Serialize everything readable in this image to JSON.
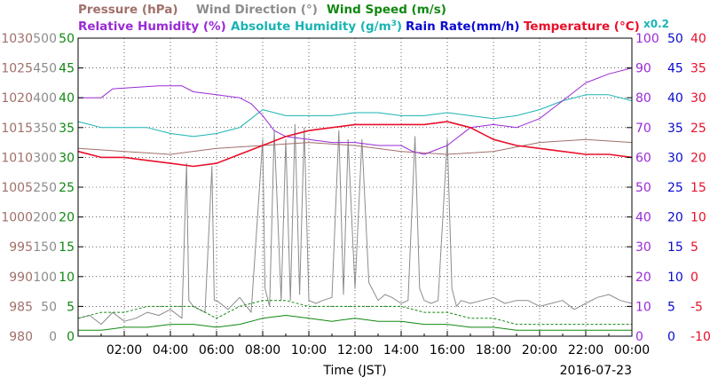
{
  "chart_data": {
    "type": "line",
    "xlabel": "Time (JST)",
    "date": "2016-07-23",
    "x_ticks": [
      "02:00",
      "04:00",
      "06:00",
      "08:00",
      "10:00",
      "12:00",
      "14:00",
      "16:00",
      "18:00",
      "20:00",
      "22:00",
      "00:00"
    ],
    "x_range_hours": [
      0,
      24
    ],
    "legend_row1": [
      {
        "label": "Pressure (hPa)",
        "color": "#a0706a"
      },
      {
        "label": "Wind Direction (°)",
        "color": "#8c8c8c"
      },
      {
        "label": "Wind Speed (m/s)",
        "color": "#118811"
      }
    ],
    "legend_row2": [
      {
        "label": "Relative Humidity (%)",
        "color": "#9a2ad6"
      },
      {
        "label": "Absolute Humidity (g/m",
        "sup": "3",
        "close": ")",
        "color": "#1ab3b3"
      },
      {
        "label": "Rain Rate(mm/h)",
        "color": "#0a0ad0"
      },
      {
        "label": "Temperature (°C)",
        "color": "#e8102a"
      }
    ],
    "scale_note": "x0.2",
    "axes": {
      "pressure": {
        "color": "#a0706a",
        "range": [
          980,
          1030
        ],
        "ticks": [
          "1030",
          "1025",
          "1020",
          "1015",
          "1010",
          "1005",
          "1000",
          "995",
          "990",
          "985",
          "980"
        ]
      },
      "wind_direction": {
        "color": "#8c8c8c",
        "range": [
          0,
          500
        ],
        "ticks": [
          "500",
          "450",
          "400",
          "350",
          "300",
          "250",
          "200",
          "150",
          "100",
          "50",
          "0"
        ]
      },
      "wind_speed": {
        "color": "#118811",
        "range": [
          0,
          50
        ],
        "ticks": [
          "50",
          "45",
          "40",
          "35",
          "30",
          "25",
          "20",
          "15",
          "10",
          "5",
          "0"
        ]
      },
      "relative_humidity": {
        "color": "#9a2ad6",
        "range": [
          0,
          100
        ],
        "ticks": [
          "100",
          "90",
          "80",
          "70",
          "60",
          "50",
          "40",
          "30",
          "20",
          "10",
          "0"
        ]
      },
      "rain_rate": {
        "color": "#0a0ad0",
        "range": [
          0,
          50
        ],
        "ticks": [
          "50",
          "45",
          "40",
          "35",
          "30",
          "25",
          "20",
          "15",
          "10",
          "5",
          "0"
        ]
      },
      "temperature": {
        "color": "#e8102a",
        "range": [
          -10,
          40
        ],
        "ticks": [
          "40",
          "35",
          "30",
          "25",
          "20",
          "15",
          "10",
          "5",
          "0",
          "-5",
          "-10"
        ]
      }
    },
    "series": [
      {
        "name": "Relative Humidity (%)",
        "color": "#9a2ad6",
        "axis": "relative_humidity",
        "x": [
          0,
          1,
          1.5,
          3.5,
          4.5,
          5,
          6,
          7,
          7.5,
          8,
          8.5,
          9,
          10,
          11,
          12,
          13,
          14,
          14.5,
          15,
          16,
          17,
          18,
          19,
          20,
          21,
          22,
          23,
          24
        ],
        "y": [
          80,
          80,
          83,
          84,
          84,
          82,
          81,
          80,
          78,
          74,
          69,
          67,
          66,
          65,
          65,
          64,
          64,
          62,
          61,
          64,
          70,
          71,
          70,
          73,
          79,
          85,
          88,
          90
        ]
      },
      {
        "name": "Absolute Humidity (g/m3)",
        "color": "#1ab3b3",
        "axis": "relative_humidity",
        "x": [
          0,
          0.5,
          1,
          2,
          3,
          4,
          5,
          6,
          7,
          7.5,
          8,
          9,
          10,
          11,
          12,
          13,
          14,
          15,
          16,
          17,
          18,
          19,
          20,
          21,
          22,
          23,
          24
        ],
        "y": [
          72,
          71,
          70,
          70,
          70,
          68,
          67,
          68,
          70,
          73,
          76,
          74,
          74,
          74,
          75,
          75,
          74,
          74,
          75,
          74,
          73,
          74,
          76,
          79,
          81,
          81,
          79
        ]
      },
      {
        "name": "Temperature (°C)",
        "color": "#e8102a",
        "axis": "temperature",
        "x": [
          0,
          1,
          2,
          3,
          4,
          5,
          6,
          7,
          8,
          9,
          10,
          11,
          12,
          13,
          14,
          15,
          16,
          17,
          18,
          19,
          20,
          21,
          22,
          23,
          24
        ],
        "y": [
          21,
          20,
          20,
          19.5,
          19,
          18.5,
          19,
          20.5,
          22,
          23.5,
          24.5,
          25,
          25.5,
          25.5,
          25.5,
          25.5,
          26,
          25,
          23,
          22,
          21.5,
          21,
          20.5,
          20.5,
          20
        ]
      },
      {
        "name": "Pressure (hPa)",
        "color": "#a0706a",
        "axis": "pressure",
        "x": [
          0,
          2,
          4,
          6,
          8,
          10,
          12,
          14,
          16,
          18,
          20,
          22,
          24
        ],
        "y": [
          1011.5,
          1011,
          1010.5,
          1011.5,
          1012,
          1012.5,
          1012,
          1011,
          1010.5,
          1011,
          1012.5,
          1013,
          1012.5
        ]
      },
      {
        "name": "Wind Direction (°)",
        "color": "#8c8c8c",
        "axis": "wind_direction",
        "x": [
          0,
          0.5,
          1,
          1.5,
          2,
          2.5,
          3,
          3.5,
          4,
          4.5,
          4.7,
          4.8,
          5,
          5.5,
          5.8,
          5.9,
          6,
          6.5,
          7,
          7.5,
          8,
          8.1,
          8.3,
          8.5,
          8.8,
          9,
          9.2,
          9.4,
          9.6,
          9.8,
          10,
          10.3,
          10.6,
          11,
          11.3,
          11.5,
          11.7,
          12,
          12.3,
          12.6,
          13,
          13.3,
          13.6,
          14,
          14.3,
          14.6,
          14.8,
          15,
          15.3,
          15.6,
          16,
          16.2,
          16.4,
          16.6,
          17,
          17.5,
          18,
          18.5,
          19,
          19.5,
          20,
          20.5,
          21,
          21.5,
          22,
          22.5,
          23,
          23.5,
          24
        ],
        "y": [
          30,
          35,
          20,
          40,
          25,
          30,
          40,
          35,
          45,
          30,
          290,
          60,
          50,
          40,
          285,
          60,
          60,
          45,
          65,
          40,
          330,
          80,
          50,
          345,
          60,
          330,
          60,
          355,
          70,
          350,
          60,
          55,
          60,
          65,
          345,
          70,
          330,
          80,
          330,
          90,
          60,
          70,
          65,
          55,
          60,
          335,
          80,
          60,
          55,
          60,
          330,
          80,
          50,
          60,
          55,
          60,
          65,
          55,
          60,
          60,
          50,
          55,
          60,
          45,
          55,
          65,
          70,
          60,
          55
        ]
      },
      {
        "name": "Wind Speed (m/s)",
        "color": "#118811",
        "axis": "wind_speed",
        "style": "solid",
        "x": [
          0,
          1,
          2,
          3,
          4,
          5,
          6,
          7,
          8,
          9,
          10,
          11,
          12,
          13,
          14,
          15,
          16,
          17,
          18,
          19,
          20,
          21,
          22,
          23,
          24
        ],
        "y": [
          1,
          1,
          1.5,
          1.5,
          2,
          2,
          1.5,
          2,
          3,
          3.5,
          3,
          2.5,
          3,
          2.5,
          2.5,
          2,
          2,
          1.5,
          1.5,
          1,
          1,
          1,
          1,
          1,
          1
        ]
      },
      {
        "name": "Wind Speed (m/s)",
        "color": "#118811",
        "axis": "wind_speed",
        "style": "dashed",
        "x": [
          0,
          1,
          2,
          3,
          4,
          5,
          6,
          7,
          8,
          9,
          10,
          11,
          12,
          13,
          14,
          15,
          16,
          17,
          18,
          19,
          20,
          21,
          22,
          23,
          24
        ],
        "y": [
          3,
          4,
          4,
          5,
          5,
          5,
          3,
          5,
          6,
          6,
          5,
          5,
          5,
          5,
          5,
          4,
          4,
          3,
          3,
          2,
          2,
          2,
          2,
          2,
          2
        ]
      },
      {
        "name": "Rain Rate(mm/h)",
        "color": "#0a0ad0",
        "axis": "rain_rate",
        "x": [
          0,
          24
        ],
        "y": [
          0,
          0
        ]
      }
    ]
  }
}
